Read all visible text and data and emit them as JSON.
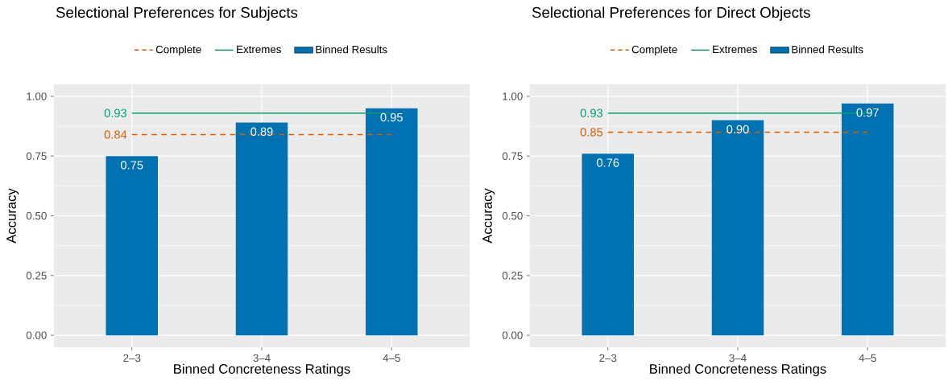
{
  "chart_data": [
    {
      "type": "bar",
      "title": "Selectional Preferences for Subjects",
      "xlabel": "Binned Concreteness Ratings",
      "ylabel": "Accuracy",
      "categories": [
        "2–3",
        "3–4",
        "4–5"
      ],
      "ylim": [
        -0.05,
        1.05
      ],
      "yticks": [
        {
          "value": 0,
          "label": "0.00"
        },
        {
          "value": 0.25,
          "label": "0.25"
        },
        {
          "value": 0.5,
          "label": "0.50"
        },
        {
          "value": 0.75,
          "label": "0.75"
        },
        {
          "value": 1,
          "label": "1.00"
        }
      ],
      "grid": true,
      "legend": "top",
      "series": [
        {
          "name": "Complete",
          "type": "line",
          "line_style": "dashed",
          "color": "#d55e00",
          "values": [
            0.84,
            0.84,
            0.84
          ],
          "value_labels": [
            "0.84",
            null,
            null
          ]
        },
        {
          "name": "Extremes",
          "type": "line",
          "line_style": "solid",
          "color": "#009e73",
          "values": [
            0.93,
            0.93,
            0.93
          ],
          "value_labels": [
            "0.93",
            null,
            null
          ]
        },
        {
          "name": "Binned Results",
          "color": "#0072b2",
          "values": [
            0.75,
            0.89,
            0.95
          ],
          "value_labels": [
            "0.75",
            "0.89",
            "0.95"
          ]
        }
      ]
    },
    {
      "type": "bar",
      "title": "Selectional Preferences for Direct Objects",
      "xlabel": "Binned Concreteness Ratings",
      "ylabel": "Accuracy",
      "categories": [
        "2–3",
        "3–4",
        "4–5"
      ],
      "ylim": [
        -0.05,
        1.05
      ],
      "yticks": [
        {
          "value": 0,
          "label": "0.00"
        },
        {
          "value": 0.25,
          "label": "0.25"
        },
        {
          "value": 0.5,
          "label": "0.50"
        },
        {
          "value": 0.75,
          "label": "0.75"
        },
        {
          "value": 1,
          "label": "1.00"
        }
      ],
      "grid": true,
      "legend": "top",
      "series": [
        {
          "name": "Complete",
          "type": "line",
          "line_style": "dashed",
          "color": "#d55e00",
          "values": [
            0.85,
            0.85,
            0.85
          ],
          "value_labels": [
            "0.85",
            null,
            null
          ]
        },
        {
          "name": "Extremes",
          "type": "line",
          "line_style": "solid",
          "color": "#009e73",
          "values": [
            0.93,
            0.93,
            0.93
          ],
          "value_labels": [
            "0.93",
            null,
            null
          ]
        },
        {
          "name": "Binned Results",
          "color": "#0072b2",
          "values": [
            0.76,
            0.9,
            0.97
          ],
          "value_labels": [
            "0.76",
            "0.90",
            "0.97"
          ]
        }
      ]
    }
  ]
}
